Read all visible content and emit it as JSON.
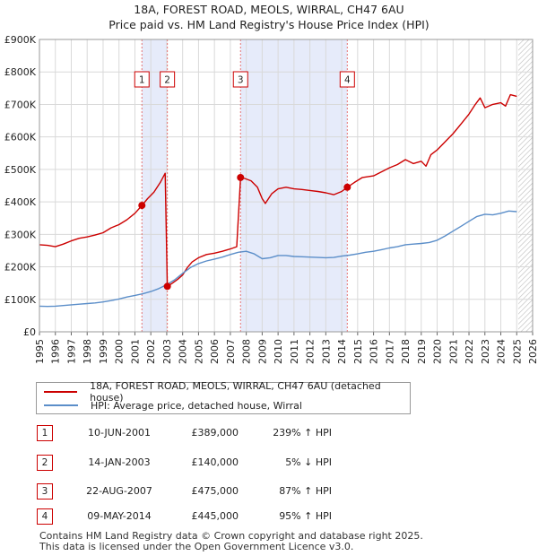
{
  "title": "18A, FOREST ROAD, MEOLS, WIRRAL, CH47 6AU",
  "subtitle": "Price paid vs. HM Land Registry's House Price Index (HPI)",
  "chart_data": {
    "type": "line",
    "xlim": [
      1995,
      2026
    ],
    "ylim": [
      0,
      900000
    ],
    "x_ticks": [
      "1995",
      "1996",
      "1997",
      "1998",
      "1999",
      "2000",
      "2001",
      "2002",
      "2003",
      "2004",
      "2005",
      "2006",
      "2007",
      "2008",
      "2009",
      "2010",
      "2011",
      "2012",
      "2013",
      "2014",
      "2015",
      "2016",
      "2017",
      "2018",
      "2019",
      "2020",
      "2021",
      "2022",
      "2023",
      "2024",
      "2025",
      "2026"
    ],
    "y_ticks": [
      {
        "value": 0,
        "label": "£0"
      },
      {
        "value": 100000,
        "label": "£100K"
      },
      {
        "value": 200000,
        "label": "£200K"
      },
      {
        "value": 300000,
        "label": "£300K"
      },
      {
        "value": 400000,
        "label": "£400K"
      },
      {
        "value": 500000,
        "label": "£500K"
      },
      {
        "value": 600000,
        "label": "£600K"
      },
      {
        "value": 700000,
        "label": "£700K"
      },
      {
        "value": 800000,
        "label": "£800K"
      },
      {
        "value": 900000,
        "label": "£900K"
      }
    ],
    "grid": true,
    "series": [
      {
        "name": "18A, FOREST ROAD, MEOLS, WIRRAL, CH47 6AU (detached house)",
        "color": "#cc0000",
        "points": [
          [
            1995.0,
            268000
          ],
          [
            1995.5,
            266000
          ],
          [
            1996.0,
            262000
          ],
          [
            1996.5,
            270000
          ],
          [
            1997.0,
            280000
          ],
          [
            1997.5,
            288000
          ],
          [
            1998.0,
            292000
          ],
          [
            1998.5,
            298000
          ],
          [
            1999.0,
            305000
          ],
          [
            1999.5,
            320000
          ],
          [
            2000.0,
            330000
          ],
          [
            2000.5,
            345000
          ],
          [
            2001.0,
            365000
          ],
          [
            2001.44,
            389000
          ],
          [
            2001.8,
            410000
          ],
          [
            2002.2,
            430000
          ],
          [
            2002.6,
            460000
          ],
          [
            2002.9,
            488000
          ],
          [
            2003.04,
            140000
          ],
          [
            2003.3,
            148000
          ],
          [
            2003.7,
            162000
          ],
          [
            2004.0,
            175000
          ],
          [
            2004.3,
            198000
          ],
          [
            2004.6,
            215000
          ],
          [
            2005.0,
            228000
          ],
          [
            2005.5,
            238000
          ],
          [
            2006.0,
            242000
          ],
          [
            2006.5,
            248000
          ],
          [
            2007.0,
            255000
          ],
          [
            2007.4,
            262000
          ],
          [
            2007.64,
            475000
          ],
          [
            2007.9,
            472000
          ],
          [
            2008.3,
            465000
          ],
          [
            2008.7,
            445000
          ],
          [
            2009.0,
            410000
          ],
          [
            2009.2,
            395000
          ],
          [
            2009.6,
            425000
          ],
          [
            2010.0,
            440000
          ],
          [
            2010.5,
            445000
          ],
          [
            2011.0,
            440000
          ],
          [
            2011.5,
            438000
          ],
          [
            2012.0,
            435000
          ],
          [
            2012.5,
            432000
          ],
          [
            2013.0,
            428000
          ],
          [
            2013.5,
            422000
          ],
          [
            2014.0,
            432000
          ],
          [
            2014.35,
            445000
          ],
          [
            2014.8,
            460000
          ],
          [
            2015.3,
            475000
          ],
          [
            2016.0,
            480000
          ],
          [
            2016.6,
            495000
          ],
          [
            2017.0,
            505000
          ],
          [
            2017.5,
            515000
          ],
          [
            2018.0,
            530000
          ],
          [
            2018.5,
            518000
          ],
          [
            2019.0,
            525000
          ],
          [
            2019.3,
            510000
          ],
          [
            2019.6,
            545000
          ],
          [
            2020.0,
            560000
          ],
          [
            2020.5,
            585000
          ],
          [
            2021.0,
            610000
          ],
          [
            2021.5,
            640000
          ],
          [
            2022.0,
            670000
          ],
          [
            2022.4,
            700000
          ],
          [
            2022.7,
            720000
          ],
          [
            2023.0,
            690000
          ],
          [
            2023.5,
            700000
          ],
          [
            2024.0,
            705000
          ],
          [
            2024.3,
            695000
          ],
          [
            2024.6,
            730000
          ],
          [
            2025.0,
            725000
          ]
        ]
      },
      {
        "name": "HPI: Average price, detached house, Wirral",
        "color": "#5b8ec9",
        "points": [
          [
            1995.0,
            79000
          ],
          [
            1995.5,
            78000
          ],
          [
            1996.0,
            79000
          ],
          [
            1996.5,
            81000
          ],
          [
            1997.0,
            83000
          ],
          [
            1997.5,
            85000
          ],
          [
            1998.0,
            87000
          ],
          [
            1998.5,
            89000
          ],
          [
            1999.0,
            92000
          ],
          [
            1999.5,
            96000
          ],
          [
            2000.0,
            101000
          ],
          [
            2000.5,
            107000
          ],
          [
            2001.0,
            112000
          ],
          [
            2001.5,
            117000
          ],
          [
            2002.0,
            124000
          ],
          [
            2002.5,
            133000
          ],
          [
            2003.0,
            145000
          ],
          [
            2003.5,
            160000
          ],
          [
            2004.0,
            180000
          ],
          [
            2004.5,
            198000
          ],
          [
            2005.0,
            210000
          ],
          [
            2005.5,
            218000
          ],
          [
            2006.0,
            224000
          ],
          [
            2006.5,
            230000
          ],
          [
            2007.0,
            238000
          ],
          [
            2007.5,
            245000
          ],
          [
            2008.0,
            248000
          ],
          [
            2008.5,
            240000
          ],
          [
            2009.0,
            225000
          ],
          [
            2009.5,
            228000
          ],
          [
            2010.0,
            235000
          ],
          [
            2010.5,
            235000
          ],
          [
            2011.0,
            232000
          ],
          [
            2011.5,
            231000
          ],
          [
            2012.0,
            230000
          ],
          [
            2012.5,
            229000
          ],
          [
            2013.0,
            228000
          ],
          [
            2013.5,
            229000
          ],
          [
            2014.0,
            233000
          ],
          [
            2014.5,
            236000
          ],
          [
            2015.0,
            240000
          ],
          [
            2015.5,
            245000
          ],
          [
            2016.0,
            248000
          ],
          [
            2016.5,
            253000
          ],
          [
            2017.0,
            258000
          ],
          [
            2017.5,
            262000
          ],
          [
            2018.0,
            268000
          ],
          [
            2018.5,
            270000
          ],
          [
            2019.0,
            272000
          ],
          [
            2019.5,
            275000
          ],
          [
            2020.0,
            282000
          ],
          [
            2020.5,
            295000
          ],
          [
            2021.0,
            310000
          ],
          [
            2021.5,
            325000
          ],
          [
            2022.0,
            340000
          ],
          [
            2022.5,
            355000
          ],
          [
            2023.0,
            362000
          ],
          [
            2023.5,
            360000
          ],
          [
            2024.0,
            365000
          ],
          [
            2024.5,
            372000
          ],
          [
            2025.0,
            370000
          ]
        ]
      }
    ],
    "events": [
      {
        "label": "1",
        "x": 2001.44,
        "value": 389000,
        "date": "10-JUN-2001",
        "price": "£389,000",
        "hpi": "239% ↑ HPI"
      },
      {
        "label": "2",
        "x": 2003.04,
        "value": 140000,
        "date": "14-JAN-2003",
        "price": "£140,000",
        "hpi": "5% ↓ HPI"
      },
      {
        "label": "3",
        "x": 2007.64,
        "value": 475000,
        "date": "22-AUG-2007",
        "price": "£475,000",
        "hpi": "87% ↑ HPI"
      },
      {
        "label": "4",
        "x": 2014.35,
        "value": 445000,
        "date": "09-MAY-2014",
        "price": "£445,000",
        "hpi": "95% ↑ HPI"
      }
    ],
    "shaded_ranges": [
      [
        2001.44,
        2003.04
      ],
      [
        2007.64,
        2014.35
      ]
    ],
    "hatched_from": 2025.1
  },
  "legend": {
    "property_label": "18A, FOREST ROAD, MEOLS, WIRRAL, CH47 6AU (detached house)",
    "hpi_label": "HPI: Average price, detached house, Wirral",
    "property_color": "#cc0000",
    "hpi_color": "#5b8ec9"
  },
  "table": [
    {
      "num": "1",
      "date": "10-JUN-2001",
      "price": "£389,000",
      "hpi": "239% ↑ HPI"
    },
    {
      "num": "2",
      "date": "14-JAN-2003",
      "price": "£140,000",
      "hpi": "5% ↓ HPI"
    },
    {
      "num": "3",
      "date": "22-AUG-2007",
      "price": "£475,000",
      "hpi": "87% ↑ HPI"
    },
    {
      "num": "4",
      "date": "09-MAY-2014",
      "price": "£445,000",
      "hpi": "95% ↑ HPI"
    }
  ],
  "footer": {
    "line1": "Contains HM Land Registry data © Crown copyright and database right 2025.",
    "line2": "This data is licensed under the Open Government Licence v3.0."
  }
}
